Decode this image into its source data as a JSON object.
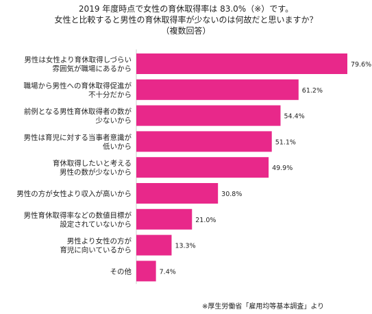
{
  "title_lines": [
    "2019 年度時点で女性の育休取得率は 83.0%（※）です。",
    "女性と比較すると男性の育休取得率が少ないのは何故だと思いますか？",
    "（複数回答）"
  ],
  "note": "※厚生労働省「雇用均等基本調査」より",
  "colors": {
    "bar": "#e8288a",
    "axis": "#cccccc",
    "text": "#222222"
  },
  "chart_data": {
    "type": "bar",
    "orientation": "horizontal",
    "categories": [
      [
        "男性は女性より育休取得しづらい",
        "雰囲気が職場にあるから"
      ],
      [
        "職場から男性への育休取得促進が",
        "不十分だから"
      ],
      [
        "前例となる男性育休取得者の数が",
        "少ないから"
      ],
      [
        "男性は育児に対する当事者意識が",
        "低いから"
      ],
      [
        "育休取得したいと考える",
        "男性の数が少ないから"
      ],
      [
        "男性の方が女性より収入が高いから"
      ],
      [
        "男性育休取得率などの数値目標が",
        "設定されていないから"
      ],
      [
        "男性より女性の方が",
        "育児に向いているから"
      ],
      [
        "その他"
      ]
    ],
    "values": [
      79.6,
      61.2,
      54.4,
      51.1,
      49.9,
      30.8,
      21.0,
      13.3,
      7.4
    ],
    "value_labels": [
      "79.6%",
      "61.2%",
      "54.4%",
      "51.1%",
      "49.9%",
      "30.8%",
      "21.0%",
      "13.3%",
      "7.4%"
    ],
    "xlim": [
      0,
      80
    ],
    "grid": false,
    "legend": "none"
  }
}
